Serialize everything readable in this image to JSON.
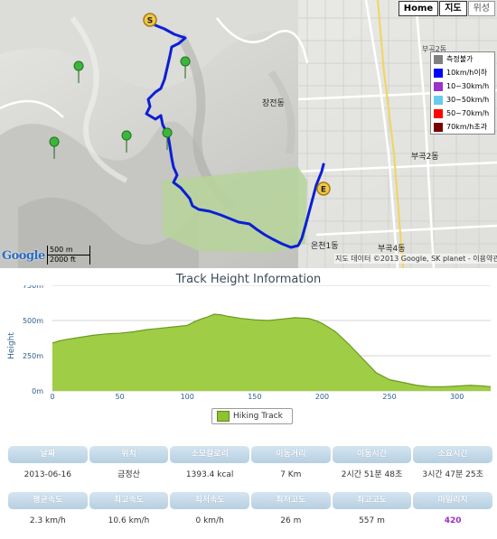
{
  "map": {
    "buttons": {
      "home": "Home",
      "map": "지도",
      "satellite": "위성"
    },
    "legend": [
      {
        "label": "측정불가",
        "color": "#808080"
      },
      {
        "label": "10km/h이하",
        "color": "#0000ff"
      },
      {
        "label": "10~30km/h",
        "color": "#9933cc"
      },
      {
        "label": "30~50km/h",
        "color": "#66ccee"
      },
      {
        "label": "50~70km/h",
        "color": "#ff0000"
      },
      {
        "label": "70km/h초과",
        "color": "#7a0000"
      }
    ],
    "start_marker": "S",
    "end_marker": "E",
    "places": {
      "jangjeon": "장전동",
      "bugok2": "부곡2동",
      "bugok2_top": "부곡2동",
      "oncheon1": "온천1동",
      "bugok4": "부곡4동"
    },
    "google": "Google",
    "scale_metric": "500 m",
    "scale_imperial": "2000 ft",
    "attribution": "지도 데이터 ©2013 Google, SK planet - 이용약관",
    "track_color": "#0b1fd6"
  },
  "chart": {
    "title": "Track Height Information",
    "legend_label": "Hiking Track",
    "fill_color": "#9fcd45",
    "line_color": "#6b9a1f"
  },
  "chart_data": {
    "type": "area",
    "title": "Track Height Information",
    "xlabel": "",
    "ylabel": "Height",
    "xlim": [
      0,
      325
    ],
    "ylim": [
      0,
      750
    ],
    "x_ticks": [
      0,
      50,
      100,
      150,
      200,
      250,
      300
    ],
    "y_ticks": [
      "0m",
      "250m",
      "500m",
      "750m"
    ],
    "y_tick_values": [
      0,
      250,
      500,
      750
    ],
    "grid": true,
    "legend": "bottom-center",
    "series": [
      {
        "name": "Hiking Track",
        "x": [
          0,
          5,
          10,
          20,
          30,
          40,
          50,
          60,
          70,
          80,
          90,
          100,
          105,
          110,
          115,
          120,
          125,
          130,
          140,
          150,
          160,
          170,
          180,
          190,
          195,
          200,
          210,
          220,
          230,
          240,
          250,
          260,
          270,
          280,
          290,
          300,
          310,
          320,
          325
        ],
        "y": [
          340,
          355,
          365,
          380,
          395,
          405,
          410,
          420,
          435,
          445,
          455,
          465,
          490,
          510,
          525,
          545,
          540,
          530,
          515,
          505,
          500,
          510,
          520,
          515,
          500,
          480,
          420,
          330,
          230,
          130,
          80,
          60,
          40,
          30,
          30,
          35,
          40,
          35,
          30
        ]
      }
    ]
  },
  "stats": {
    "row1": {
      "headers": [
        "날짜",
        "위치",
        "소모칼로리",
        "이동거리",
        "이동시간",
        "소요시간"
      ],
      "values": [
        "2013-06-16",
        "금정산",
        "1393.4 kcal",
        "7 Km",
        "2시간 51분 48초",
        "3시간 47분 25초"
      ]
    },
    "row2": {
      "headers": [
        "평균속도",
        "최고속도",
        "최저속도",
        "최저고도",
        "최고고도",
        "마일리지"
      ],
      "values": [
        "2.3 km/h",
        "10.6 km/h",
        "0 km/h",
        "26 m",
        "557 m",
        "420"
      ]
    }
  }
}
